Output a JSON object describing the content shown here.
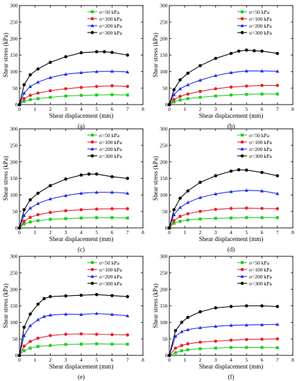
{
  "figure": {
    "panel_titles": [
      "(a)",
      "(b)",
      "(c)",
      "(d)",
      "(e)",
      "(f)"
    ]
  },
  "styles": {
    "series_colors": [
      "#22cc22",
      "#e8202a",
      "#1f2ee8",
      "#000000"
    ],
    "series_markers": [
      "square",
      "circle",
      "triangle",
      "circle"
    ]
  },
  "chart_data": [
    {
      "type": "line",
      "title": "(a)",
      "xlabel": "Shear displacement (mm)",
      "ylabel": "Shear stress (kPa)",
      "xlim": [
        0,
        8
      ],
      "ylim": [
        0,
        300
      ],
      "xticks": [
        0,
        1,
        2,
        3,
        4,
        5,
        6,
        7,
        8
      ],
      "yticks": [
        0,
        50,
        100,
        150,
        200,
        250,
        300
      ],
      "legend_position": "top-right",
      "grid": false,
      "series": [
        {
          "name": "σ=50 kPa",
          "x": [
            0,
            0.3,
            0.7,
            1.2,
            2,
            3,
            4,
            5,
            6,
            7
          ],
          "y": [
            0,
            10,
            15,
            18,
            22,
            26,
            28,
            29,
            30,
            29
          ]
        },
        {
          "name": "σ=100 kPa",
          "x": [
            0,
            0.3,
            0.7,
            1.2,
            2,
            3,
            4,
            5,
            6,
            7
          ],
          "y": [
            0,
            18,
            28,
            35,
            42,
            48,
            52,
            55,
            57,
            55
          ]
        },
        {
          "name": "σ=200 kPa",
          "x": [
            0,
            0.3,
            0.7,
            1.2,
            2,
            3,
            4,
            5,
            6,
            7
          ],
          "y": [
            0,
            35,
            55,
            68,
            82,
            92,
            97,
            100,
            101,
            99
          ]
        },
        {
          "name": "σ=300 kPa",
          "x": [
            0,
            0.3,
            0.7,
            1.2,
            2,
            3,
            4,
            5,
            5.5,
            6,
            7
          ],
          "y": [
            0,
            60,
            90,
            108,
            128,
            145,
            157,
            160,
            160,
            158,
            150
          ]
        }
      ]
    },
    {
      "type": "line",
      "title": "(b)",
      "xlabel": "Shear displacement (mm)",
      "ylabel": "Shear stress (kPa)",
      "xlim": [
        0,
        8
      ],
      "ylim": [
        0,
        300
      ],
      "xticks": [
        0,
        1,
        2,
        3,
        4,
        5,
        6,
        7,
        8
      ],
      "yticks": [
        0,
        50,
        100,
        150,
        200,
        250,
        300
      ],
      "legend_position": "top-right",
      "grid": false,
      "series": [
        {
          "name": "σ=50 kPa",
          "x": [
            0,
            0.3,
            0.7,
            1.2,
            2,
            3,
            4,
            5,
            6,
            7
          ],
          "y": [
            0,
            8,
            14,
            18,
            22,
            26,
            29,
            31,
            32,
            32
          ]
        },
        {
          "name": "σ=100 kPa",
          "x": [
            0,
            0.3,
            0.7,
            1.2,
            2,
            3,
            4,
            5,
            6,
            7
          ],
          "y": [
            0,
            15,
            25,
            32,
            40,
            48,
            53,
            56,
            58,
            58
          ]
        },
        {
          "name": "σ=200 kPa",
          "x": [
            0,
            0.3,
            0.7,
            1.2,
            2,
            3,
            4,
            5,
            6,
            7
          ],
          "y": [
            0,
            30,
            48,
            60,
            74,
            88,
            97,
            102,
            102,
            101
          ]
        },
        {
          "name": "σ=300 kPa",
          "x": [
            0,
            0.3,
            0.7,
            1.2,
            2,
            3,
            4,
            4.5,
            5,
            5.5,
            6,
            7
          ],
          "y": [
            0,
            45,
            75,
            95,
            118,
            140,
            155,
            162,
            165,
            163,
            162,
            155
          ]
        }
      ]
    },
    {
      "type": "line",
      "title": "(c)",
      "xlabel": "Shear displacement (mm)",
      "ylabel": "Shear stress (kPa)",
      "xlim": [
        0,
        8
      ],
      "ylim": [
        0,
        300
      ],
      "xticks": [
        0,
        1,
        2,
        3,
        4,
        5,
        6,
        7,
        8
      ],
      "yticks": [
        0,
        50,
        100,
        150,
        200,
        250,
        300
      ],
      "legend_position": "top-right",
      "grid": false,
      "series": [
        {
          "name": "σ=50 kPa",
          "x": [
            0,
            0.3,
            0.7,
            1.2,
            2,
            3,
            4,
            5,
            6,
            7
          ],
          "y": [
            0,
            12,
            18,
            22,
            26,
            28,
            30,
            31,
            31,
            30
          ]
        },
        {
          "name": "σ=100 kPa",
          "x": [
            0,
            0.3,
            0.7,
            1.2,
            2,
            3,
            4,
            5,
            6,
            7
          ],
          "y": [
            0,
            20,
            32,
            40,
            47,
            52,
            55,
            57,
            58,
            58
          ]
        },
        {
          "name": "σ=200 kPa",
          "x": [
            0,
            0.3,
            0.7,
            1.2,
            2,
            3,
            4,
            5,
            6,
            7
          ],
          "y": [
            0,
            38,
            60,
            74,
            88,
            98,
            105,
            108,
            108,
            105
          ]
        },
        {
          "name": "σ=300 kPa",
          "x": [
            0,
            0.3,
            0.7,
            1.2,
            2,
            3,
            4,
            4.5,
            5,
            6,
            7
          ],
          "y": [
            0,
            55,
            85,
            105,
            128,
            148,
            160,
            163,
            163,
            155,
            150
          ]
        }
      ]
    },
    {
      "type": "line",
      "title": "(d)",
      "xlabel": "Shear displacement (mm)",
      "ylabel": "Shear stress (kPa)",
      "xlim": [
        0,
        8
      ],
      "ylim": [
        0,
        300
      ],
      "xticks": [
        0,
        1,
        2,
        3,
        4,
        5,
        6,
        7,
        8
      ],
      "yticks": [
        0,
        50,
        100,
        150,
        200,
        250,
        300
      ],
      "legend_position": "top-right",
      "grid": false,
      "series": [
        {
          "name": "σ=50 kPa",
          "x": [
            0,
            0.3,
            0.7,
            1.2,
            2,
            3,
            4,
            5,
            6,
            7
          ],
          "y": [
            0,
            14,
            20,
            24,
            27,
            29,
            30,
            31,
            31,
            31
          ]
        },
        {
          "name": "σ=100 kPa",
          "x": [
            0,
            0.3,
            0.7,
            1.2,
            2,
            3,
            4,
            5,
            6,
            7
          ],
          "y": [
            0,
            22,
            35,
            43,
            50,
            56,
            59,
            60,
            59,
            58
          ]
        },
        {
          "name": "σ=200 kPa",
          "x": [
            0,
            0.3,
            0.7,
            1.2,
            2,
            3,
            4,
            5,
            6,
            7
          ],
          "y": [
            0,
            40,
            62,
            77,
            92,
            103,
            110,
            114,
            112,
            104
          ]
        },
        {
          "name": "σ=300 kPa",
          "x": [
            0,
            0.3,
            0.7,
            1.2,
            2,
            3,
            4,
            4.5,
            5,
            6,
            7
          ],
          "y": [
            0,
            55,
            90,
            112,
            138,
            158,
            172,
            176,
            175,
            168,
            158
          ]
        }
      ]
    },
    {
      "type": "line",
      "title": "(e)",
      "xlabel": "Shear displacement (mm)",
      "ylabel": "Shear stress (kPa)",
      "xlim": [
        0,
        8
      ],
      "ylim": [
        0,
        300
      ],
      "xticks": [
        0,
        1,
        2,
        3,
        4,
        5,
        6,
        7,
        8
      ],
      "yticks": [
        0,
        50,
        100,
        150,
        200,
        250,
        300
      ],
      "legend_position": "top-right",
      "grid": false,
      "series": [
        {
          "name": "σ=50 kPa",
          "x": [
            0,
            0.3,
            0.7,
            1.2,
            2,
            3,
            4,
            5,
            6,
            7
          ],
          "y": [
            0,
            14,
            22,
            27,
            30,
            33,
            34,
            35,
            34,
            34
          ]
        },
        {
          "name": "σ=100 kPa",
          "x": [
            0,
            0.3,
            0.7,
            1.2,
            2,
            3,
            4,
            5,
            6,
            7
          ],
          "y": [
            0,
            28,
            42,
            52,
            60,
            64,
            65,
            64,
            63,
            62
          ]
        },
        {
          "name": "σ=200 kPa",
          "x": [
            0,
            0.3,
            0.7,
            1.2,
            1.6,
            2,
            3,
            4,
            5,
            6,
            7
          ],
          "y": [
            0,
            60,
            90,
            108,
            118,
            122,
            125,
            124,
            127,
            124,
            120
          ]
        },
        {
          "name": "σ=300 kPa",
          "x": [
            0,
            0.3,
            0.7,
            1.2,
            1.6,
            2,
            3,
            4,
            5,
            6,
            7
          ],
          "y": [
            0,
            85,
            125,
            155,
            172,
            178,
            180,
            182,
            184,
            181,
            178
          ]
        }
      ]
    },
    {
      "type": "line",
      "title": "(f)",
      "xlabel": "Shear displacement (mm)",
      "ylabel": "Shear stress (kPa)",
      "xlim": [
        0,
        8
      ],
      "ylim": [
        0,
        300
      ],
      "xticks": [
        0,
        1,
        2,
        3,
        4,
        5,
        6,
        7,
        8
      ],
      "yticks": [
        0,
        50,
        100,
        150,
        200,
        250,
        300
      ],
      "legend_position": "top-right",
      "grid": false,
      "series": [
        {
          "name": "σ=50 kPa",
          "x": [
            0,
            0.4,
            0.8,
            1.2,
            2,
            3,
            4,
            5,
            6,
            7
          ],
          "y": [
            0,
            8,
            14,
            17,
            20,
            22,
            24,
            24,
            24,
            23
          ]
        },
        {
          "name": "σ=100 kPa",
          "x": [
            0,
            0.4,
            0.8,
            1.2,
            2,
            3,
            4,
            5,
            6,
            7
          ],
          "y": [
            0,
            22,
            30,
            35,
            40,
            43,
            46,
            48,
            49,
            50
          ]
        },
        {
          "name": "σ=200 kPa",
          "x": [
            0,
            0.4,
            0.8,
            1.2,
            2,
            3,
            4,
            5,
            6,
            7
          ],
          "y": [
            0,
            58,
            72,
            78,
            84,
            88,
            91,
            92,
            93,
            94
          ]
        },
        {
          "name": "σ=300 kPa",
          "x": [
            0,
            0.4,
            0.8,
            1.2,
            2,
            3,
            4,
            5,
            6,
            7
          ],
          "y": [
            0,
            75,
            100,
            115,
            132,
            144,
            148,
            150,
            150,
            148
          ]
        }
      ]
    }
  ]
}
